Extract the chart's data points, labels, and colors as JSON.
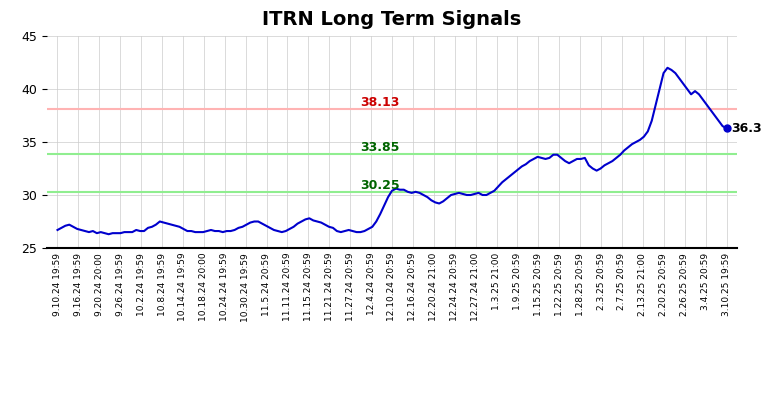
{
  "title": "ITRN Long Term Signals",
  "title_fontsize": 14,
  "title_fontweight": "bold",
  "line_color": "#0000CD",
  "line_width": 1.5,
  "hline_red": 38.13,
  "hline_green1": 33.85,
  "hline_green2": 30.25,
  "hline_red_color": "#FFB3B3",
  "hline_green1_color": "#90EE90",
  "hline_green2_color": "#90EE90",
  "label_red": "38.13",
  "label_green1": "33.85",
  "label_green2": "30.25",
  "label_red_color": "#CC0000",
  "label_green1_color": "#006400",
  "label_green2_color": "#006400",
  "last_value_label": "36.3",
  "ylim": [
    25,
    45
  ],
  "yticks": [
    25,
    30,
    35,
    40,
    45
  ],
  "background_color": "#FFFFFF",
  "grid_color": "#CCCCCC",
  "xtick_fontsize": 6.5,
  "xtick_labels": [
    "9.10.24 19:59",
    "9.16.24 19:59",
    "9.20.24 20:00",
    "9.26.24 19:59",
    "10.2.24 19:59",
    "10.8.24 19:59",
    "10.14.24 19:59",
    "10.18.24 20:00",
    "10.24.24 19:59",
    "10.30.24 19:59",
    "11.5.24 20:59",
    "11.11.24 20:59",
    "11.15.24 20:59",
    "11.21.24 20:59",
    "11.27.24 20:59",
    "12.4.24 20:59",
    "12.10.24 20:59",
    "12.16.24 20:59",
    "12.20.24 21:00",
    "12.24.24 20:59",
    "12.27.24 21:00",
    "1.3.25 21:00",
    "1.9.25 20:59",
    "1.15.25 20:59",
    "1.22.25 20:59",
    "1.28.25 20:59",
    "2.3.25 20:59",
    "2.7.25 20:59",
    "2.13.25 21:00",
    "2.20.25 20:59",
    "2.26.25 20:59",
    "3.4.25 20:59",
    "3.10.25 19:59"
  ],
  "detailed_y": [
    26.7,
    26.9,
    27.1,
    27.2,
    27.0,
    26.8,
    26.7,
    26.6,
    26.5,
    26.6,
    26.4,
    26.5,
    26.4,
    26.3,
    26.4,
    26.4,
    26.4,
    26.5,
    26.5,
    26.5,
    26.7,
    26.6,
    26.6,
    26.9,
    27.0,
    27.2,
    27.5,
    27.4,
    27.3,
    27.2,
    27.1,
    27.0,
    26.8,
    26.6,
    26.6,
    26.5,
    26.5,
    26.5,
    26.6,
    26.7,
    26.6,
    26.6,
    26.5,
    26.6,
    26.6,
    26.7,
    26.9,
    27.0,
    27.2,
    27.4,
    27.5,
    27.5,
    27.3,
    27.1,
    26.9,
    26.7,
    26.6,
    26.5,
    26.6,
    26.8,
    27.0,
    27.3,
    27.5,
    27.7,
    27.8,
    27.6,
    27.5,
    27.4,
    27.2,
    27.0,
    26.9,
    26.6,
    26.5,
    26.6,
    26.7,
    26.6,
    26.5,
    26.5,
    26.6,
    26.8,
    27.0,
    27.5,
    28.2,
    29.0,
    29.8,
    30.4,
    30.6,
    30.5,
    30.5,
    30.3,
    30.2,
    30.3,
    30.2,
    30.0,
    29.8,
    29.5,
    29.3,
    29.2,
    29.4,
    29.7,
    30.0,
    30.1,
    30.2,
    30.1,
    30.0,
    30.0,
    30.1,
    30.2,
    30.0,
    30.0,
    30.2,
    30.4,
    30.8,
    31.2,
    31.5,
    31.8,
    32.1,
    32.4,
    32.7,
    32.9,
    33.2,
    33.4,
    33.6,
    33.5,
    33.4,
    33.5,
    33.8,
    33.8,
    33.5,
    33.2,
    33.0,
    33.2,
    33.4,
    33.4,
    33.5,
    32.8,
    32.5,
    32.3,
    32.5,
    32.8,
    33.0,
    33.2,
    33.5,
    33.8,
    34.2,
    34.5,
    34.8,
    35.0,
    35.2,
    35.5,
    36.0,
    37.0,
    38.5,
    40.0,
    41.5,
    42.0,
    41.8,
    41.5,
    41.0,
    40.5,
    40.0,
    39.5,
    39.8,
    39.5,
    39.0,
    38.5,
    38.0,
    37.5,
    37.0,
    36.5,
    36.3
  ]
}
